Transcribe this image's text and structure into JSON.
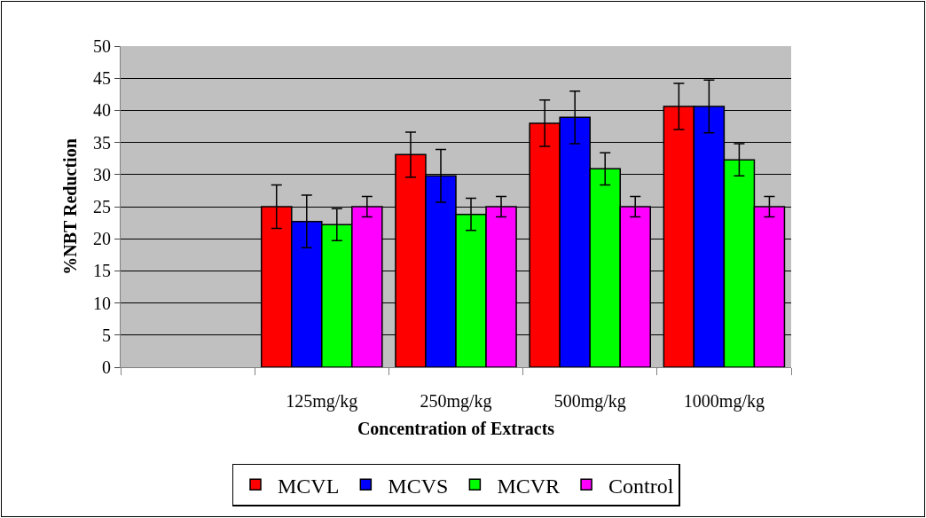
{
  "chart_data": {
    "type": "bar",
    "xlabel": "Concentration of Extracts",
    "ylabel": "%NBT Reduction",
    "categories": [
      null,
      "125mg/kg",
      "250mg/kg",
      "500mg/kg",
      "1000mg/kg"
    ],
    "series": [
      {
        "name": "MCVL",
        "color": "#ff0000",
        "values": [
          null,
          25,
          33.1,
          38,
          40.6
        ],
        "errors": [
          null,
          3.4,
          3.5,
          3.6,
          3.6
        ]
      },
      {
        "name": "MCVS",
        "color": "#0000ff",
        "values": [
          null,
          22.7,
          29.8,
          38.9,
          40.6
        ],
        "errors": [
          null,
          4.1,
          4.1,
          4.1,
          4.1
        ]
      },
      {
        "name": "MCVR",
        "color": "#00ff00",
        "values": [
          null,
          22.2,
          23.8,
          30.9,
          32.3
        ],
        "errors": [
          null,
          2.5,
          2.5,
          2.5,
          2.5
        ]
      },
      {
        "name": "Control",
        "color": "#ff00ff",
        "values": [
          null,
          25,
          25,
          25,
          25
        ],
        "errors": [
          null,
          1.6,
          1.6,
          1.6,
          1.6
        ]
      }
    ],
    "ylim": [
      0,
      50
    ],
    "yticks": [
      0,
      5,
      10,
      15,
      20,
      25,
      30,
      35,
      40,
      45,
      50
    ],
    "grid": "y",
    "legend": "bottom"
  }
}
